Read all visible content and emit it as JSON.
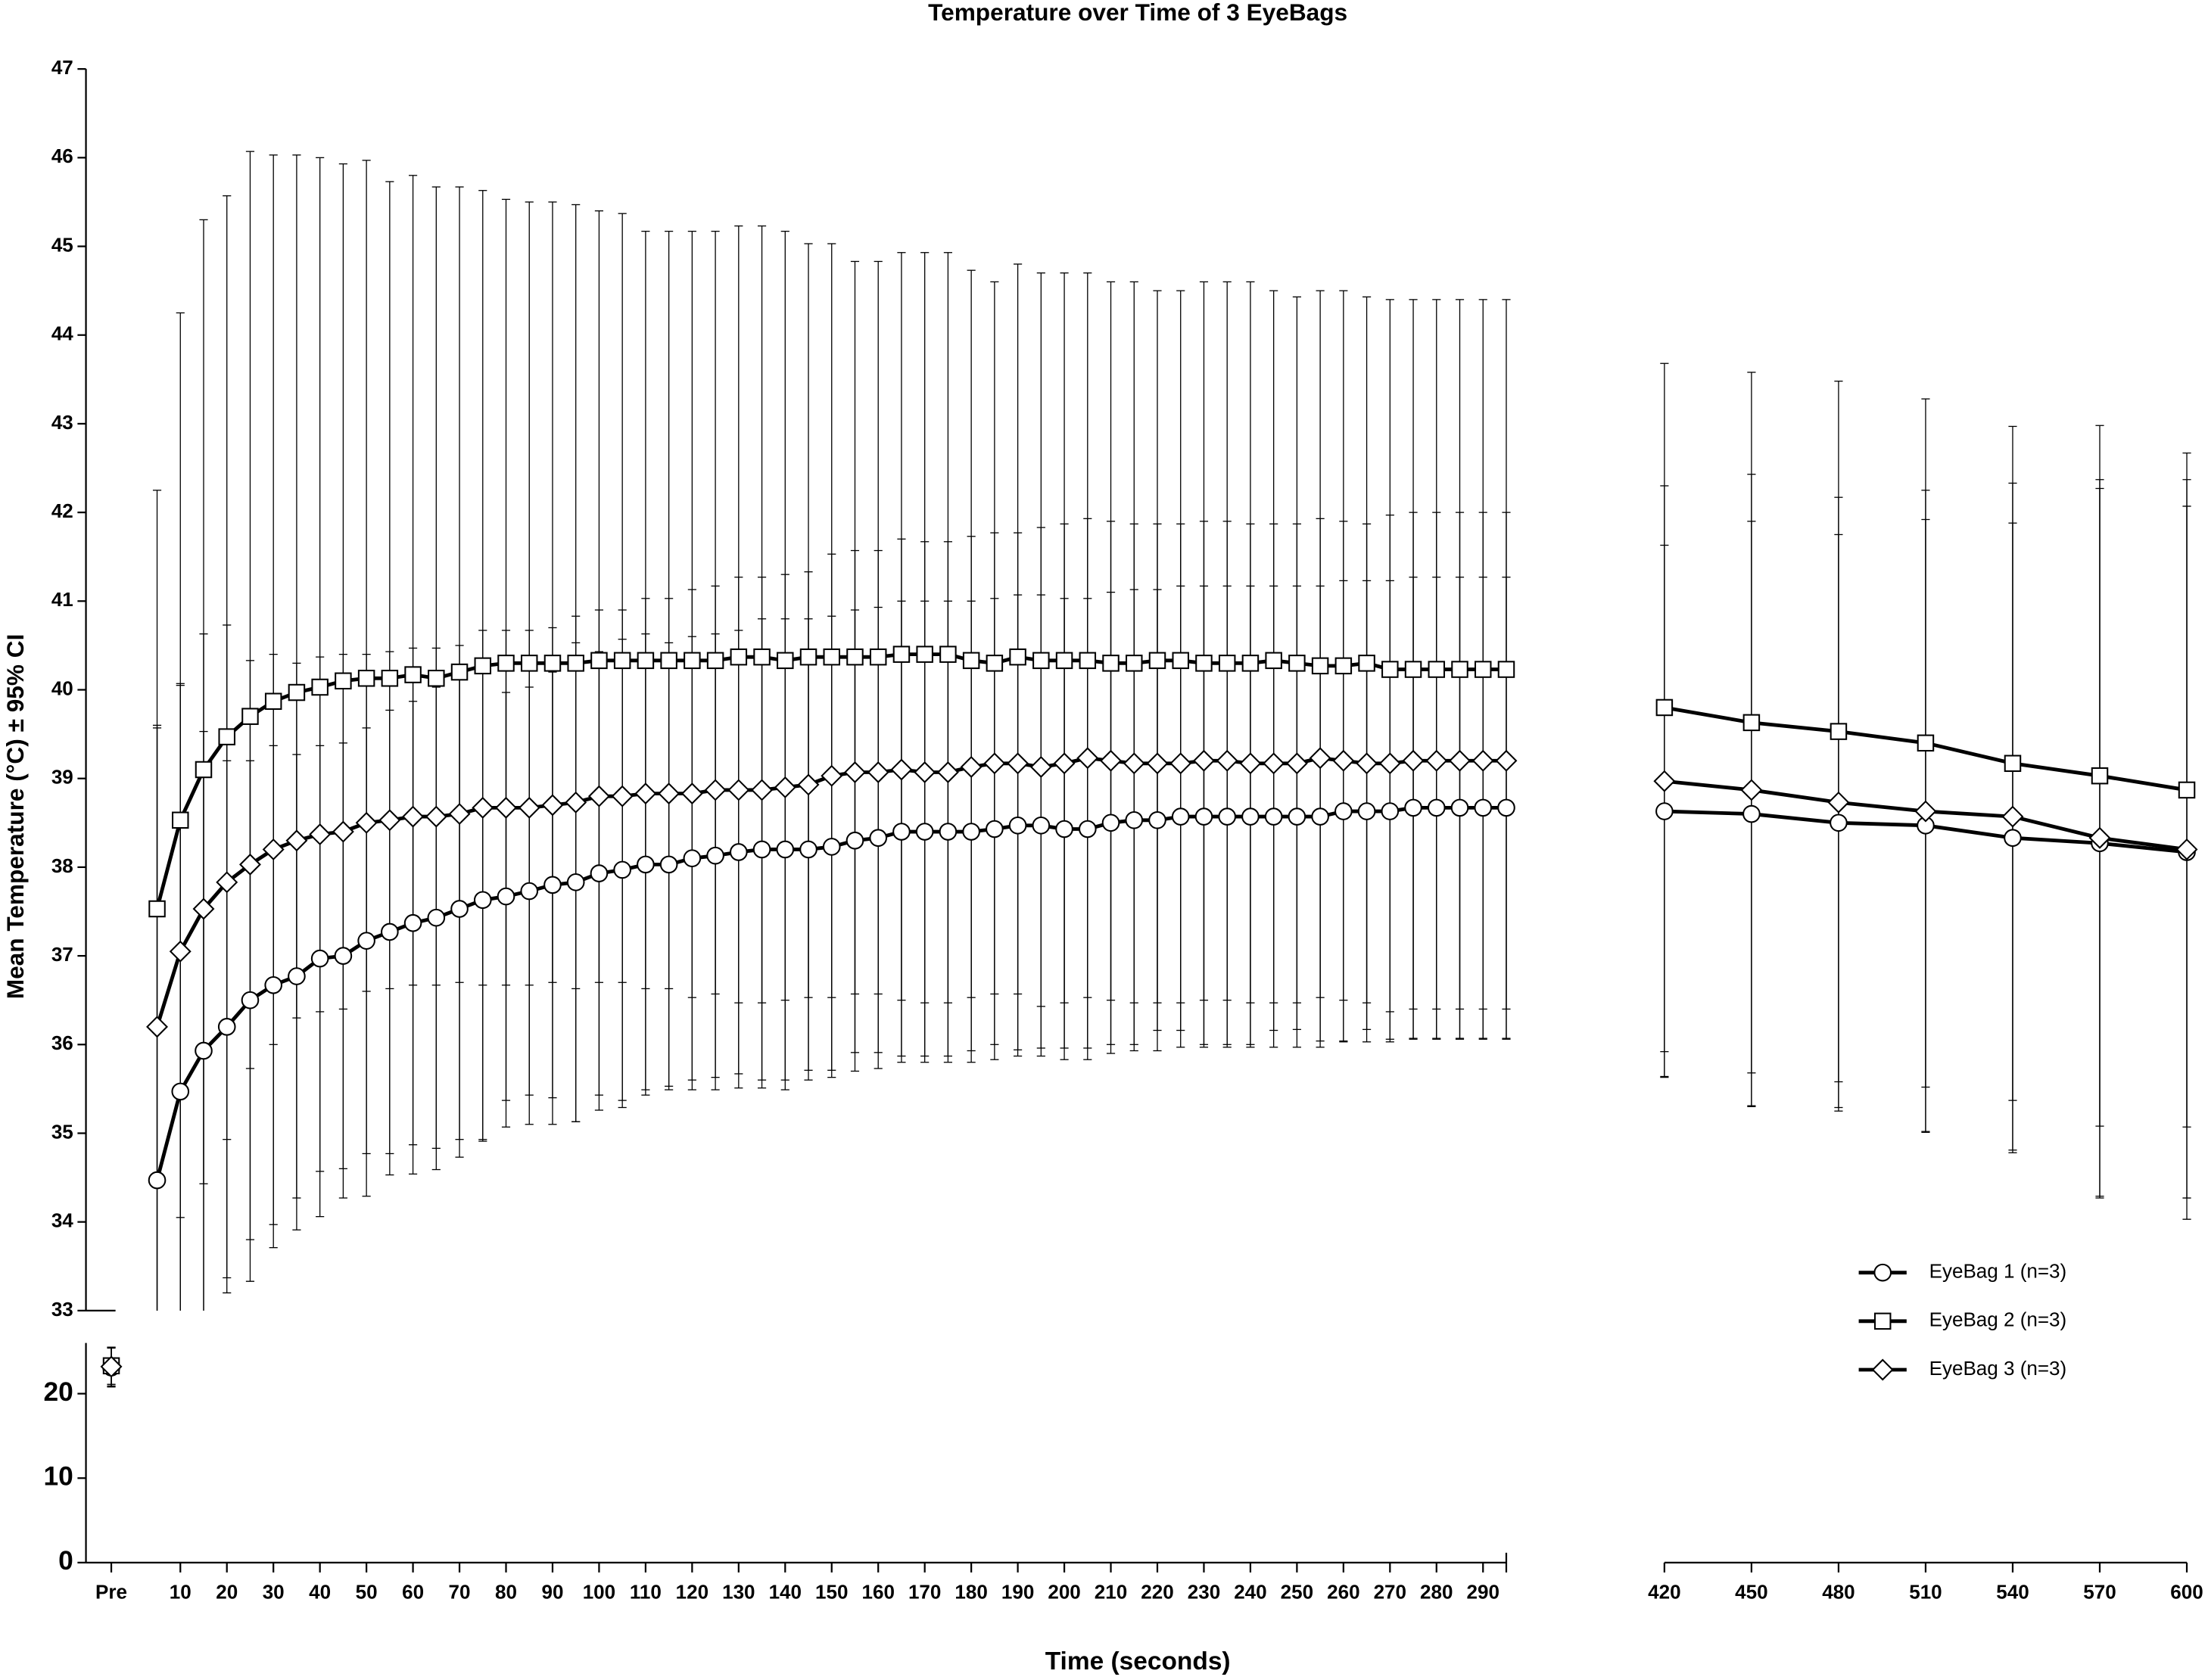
{
  "chart_data": {
    "type": "line",
    "title": "Temperature over Time of 3 EyeBags",
    "x_label": "Time (seconds)",
    "y_label": "Mean Temperature (°C) ± 95% CI",
    "pre_label": "Pre",
    "legend": "lower-right",
    "x": [
      5,
      10,
      15,
      20,
      25,
      30,
      35,
      40,
      45,
      50,
      55,
      60,
      65,
      70,
      75,
      80,
      85,
      90,
      95,
      100,
      105,
      110,
      115,
      120,
      125,
      130,
      135,
      140,
      145,
      150,
      155,
      160,
      165,
      170,
      175,
      180,
      185,
      190,
      195,
      200,
      205,
      210,
      215,
      220,
      225,
      230,
      235,
      240,
      245,
      250,
      255,
      260,
      265,
      270,
      275,
      280,
      285,
      290,
      295,
      420,
      450,
      480,
      510,
      540,
      570,
      600
    ],
    "x_segments": [
      {
        "xlim": [
          0,
          295
        ],
        "xticks": [
          10,
          20,
          30,
          40,
          50,
          60,
          70,
          80,
          90,
          100,
          110,
          120,
          130,
          140,
          150,
          160,
          170,
          180,
          190,
          200,
          210,
          220,
          230,
          240,
          250,
          260,
          270,
          280,
          290
        ]
      },
      {
        "xlim": [
          420,
          600
        ],
        "xticks": [
          420,
          450,
          480,
          510,
          540,
          570,
          600
        ]
      }
    ],
    "y_segments": [
      {
        "ylim": [
          33,
          47
        ],
        "yticks": [
          33,
          34,
          35,
          36,
          37,
          38,
          39,
          40,
          41,
          42,
          43,
          44,
          45,
          46,
          47
        ]
      },
      {
        "ylim": [
          0,
          26
        ],
        "yticks": [
          0,
          10,
          20
        ]
      }
    ],
    "series": [
      {
        "name": "EyeBag 1 (n=3)",
        "color": "#000000",
        "marker": "circle",
        "pre_value": 23.1,
        "pre_error": 2.3,
        "values": [
          34.47,
          35.47,
          35.93,
          36.2,
          36.5,
          36.67,
          36.77,
          36.97,
          37.0,
          37.17,
          37.27,
          37.37,
          37.43,
          37.53,
          37.63,
          37.67,
          37.73,
          37.8,
          37.83,
          37.93,
          37.97,
          38.03,
          38.03,
          38.1,
          38.13,
          38.17,
          38.2,
          38.2,
          38.2,
          38.23,
          38.3,
          38.33,
          38.4,
          38.4,
          38.4,
          38.4,
          38.43,
          38.47,
          38.47,
          38.43,
          38.43,
          38.5,
          38.53,
          38.53,
          38.57,
          38.57,
          38.57,
          38.57,
          38.57,
          38.57,
          38.57,
          38.63,
          38.63,
          38.63,
          38.67,
          38.67,
          38.67,
          38.67,
          38.67,
          38.63,
          38.6,
          38.5,
          38.47,
          38.33,
          38.27,
          38.17
        ],
        "errors": [
          5.1,
          4.6,
          3.6,
          3.0,
          2.7,
          2.7,
          2.5,
          2.4,
          2.4,
          2.4,
          2.5,
          2.5,
          2.6,
          2.6,
          2.7,
          2.3,
          2.3,
          2.4,
          2.7,
          2.5,
          2.6,
          2.6,
          2.5,
          2.5,
          2.5,
          2.5,
          2.6,
          2.6,
          2.6,
          2.6,
          2.6,
          2.6,
          2.6,
          2.6,
          2.6,
          2.6,
          2.6,
          2.6,
          2.6,
          2.6,
          2.6,
          2.6,
          2.6,
          2.6,
          2.6,
          2.6,
          2.6,
          2.6,
          2.6,
          2.6,
          2.6,
          2.6,
          2.6,
          2.6,
          2.6,
          2.6,
          2.6,
          2.6,
          2.6,
          3.0,
          3.3,
          3.25,
          3.45,
          3.55,
          4.0,
          3.9
        ]
      },
      {
        "name": "EyeBag 2 (n=3)",
        "color": "#000000",
        "marker": "square",
        "pre_value": 23.3,
        "pre_error": 2.2,
        "values": [
          37.53,
          38.53,
          39.1,
          39.47,
          39.7,
          39.87,
          39.97,
          40.03,
          40.1,
          40.13,
          40.13,
          40.17,
          40.13,
          40.2,
          40.27,
          40.3,
          40.3,
          40.3,
          40.3,
          40.33,
          40.33,
          40.33,
          40.33,
          40.33,
          40.33,
          40.37,
          40.37,
          40.33,
          40.37,
          40.37,
          40.37,
          40.37,
          40.4,
          40.4,
          40.4,
          40.33,
          40.3,
          40.37,
          40.33,
          40.33,
          40.33,
          40.3,
          40.3,
          40.33,
          40.33,
          40.3,
          40.3,
          40.3,
          40.33,
          40.3,
          40.27,
          40.27,
          40.3,
          40.23,
          40.23,
          40.23,
          40.23,
          40.23,
          40.23,
          39.8,
          39.63,
          39.53,
          39.4,
          39.17,
          39.03,
          38.87
        ],
        "errors": [
          4.72,
          5.72,
          6.2,
          6.1,
          6.37,
          6.16,
          6.06,
          5.97,
          5.83,
          5.84,
          5.6,
          5.63,
          5.54,
          5.47,
          5.36,
          5.23,
          5.2,
          5.2,
          5.17,
          5.07,
          5.04,
          4.84,
          4.84,
          4.84,
          4.84,
          4.86,
          4.86,
          4.84,
          4.66,
          4.66,
          4.46,
          4.46,
          4.53,
          4.53,
          4.53,
          4.4,
          4.3,
          4.43,
          4.37,
          4.37,
          4.37,
          4.3,
          4.3,
          4.17,
          4.17,
          4.3,
          4.3,
          4.3,
          4.17,
          4.13,
          4.23,
          4.23,
          4.13,
          4.17,
          4.17,
          4.17,
          4.17,
          4.17,
          4.17,
          3.88,
          3.95,
          3.95,
          3.88,
          3.8,
          3.95,
          3.8
        ]
      },
      {
        "name": "EyeBag 3 (n=3)",
        "color": "#000000",
        "marker": "diamond",
        "pre_value": 23.2,
        "pre_error": 2.3,
        "values": [
          36.2,
          37.05,
          37.53,
          37.83,
          38.03,
          38.2,
          38.3,
          38.37,
          38.4,
          38.5,
          38.53,
          38.57,
          38.57,
          38.6,
          38.67,
          38.67,
          38.67,
          38.7,
          38.73,
          38.8,
          38.8,
          38.83,
          38.83,
          38.83,
          38.87,
          38.87,
          38.87,
          38.9,
          38.93,
          39.03,
          39.07,
          39.07,
          39.1,
          39.07,
          39.07,
          39.13,
          39.17,
          39.17,
          39.13,
          39.17,
          39.23,
          39.2,
          39.17,
          39.17,
          39.17,
          39.2,
          39.2,
          39.17,
          39.17,
          39.17,
          39.23,
          39.2,
          39.17,
          39.17,
          39.2,
          39.2,
          39.2,
          39.2,
          39.2,
          38.97,
          38.87,
          38.73,
          38.63,
          38.57,
          38.33,
          38.2
        ],
        "errors": [
          3.4,
          3.0,
          3.1,
          2.9,
          2.3,
          2.2,
          2.0,
          2.0,
          2.0,
          1.9,
          1.9,
          1.9,
          1.9,
          1.9,
          2.0,
          2.0,
          2.0,
          2.0,
          2.1,
          2.1,
          2.1,
          2.2,
          2.2,
          2.3,
          2.3,
          2.4,
          2.4,
          2.4,
          2.4,
          2.5,
          2.5,
          2.5,
          2.6,
          2.6,
          2.6,
          2.6,
          2.6,
          2.6,
          2.7,
          2.7,
          2.7,
          2.7,
          2.7,
          2.7,
          2.7,
          2.7,
          2.7,
          2.7,
          2.7,
          2.7,
          2.7,
          2.7,
          2.7,
          2.8,
          2.8,
          2.8,
          2.8,
          2.8,
          2.8,
          3.33,
          3.56,
          3.44,
          3.62,
          3.76,
          4.04,
          4.17
        ]
      }
    ]
  }
}
